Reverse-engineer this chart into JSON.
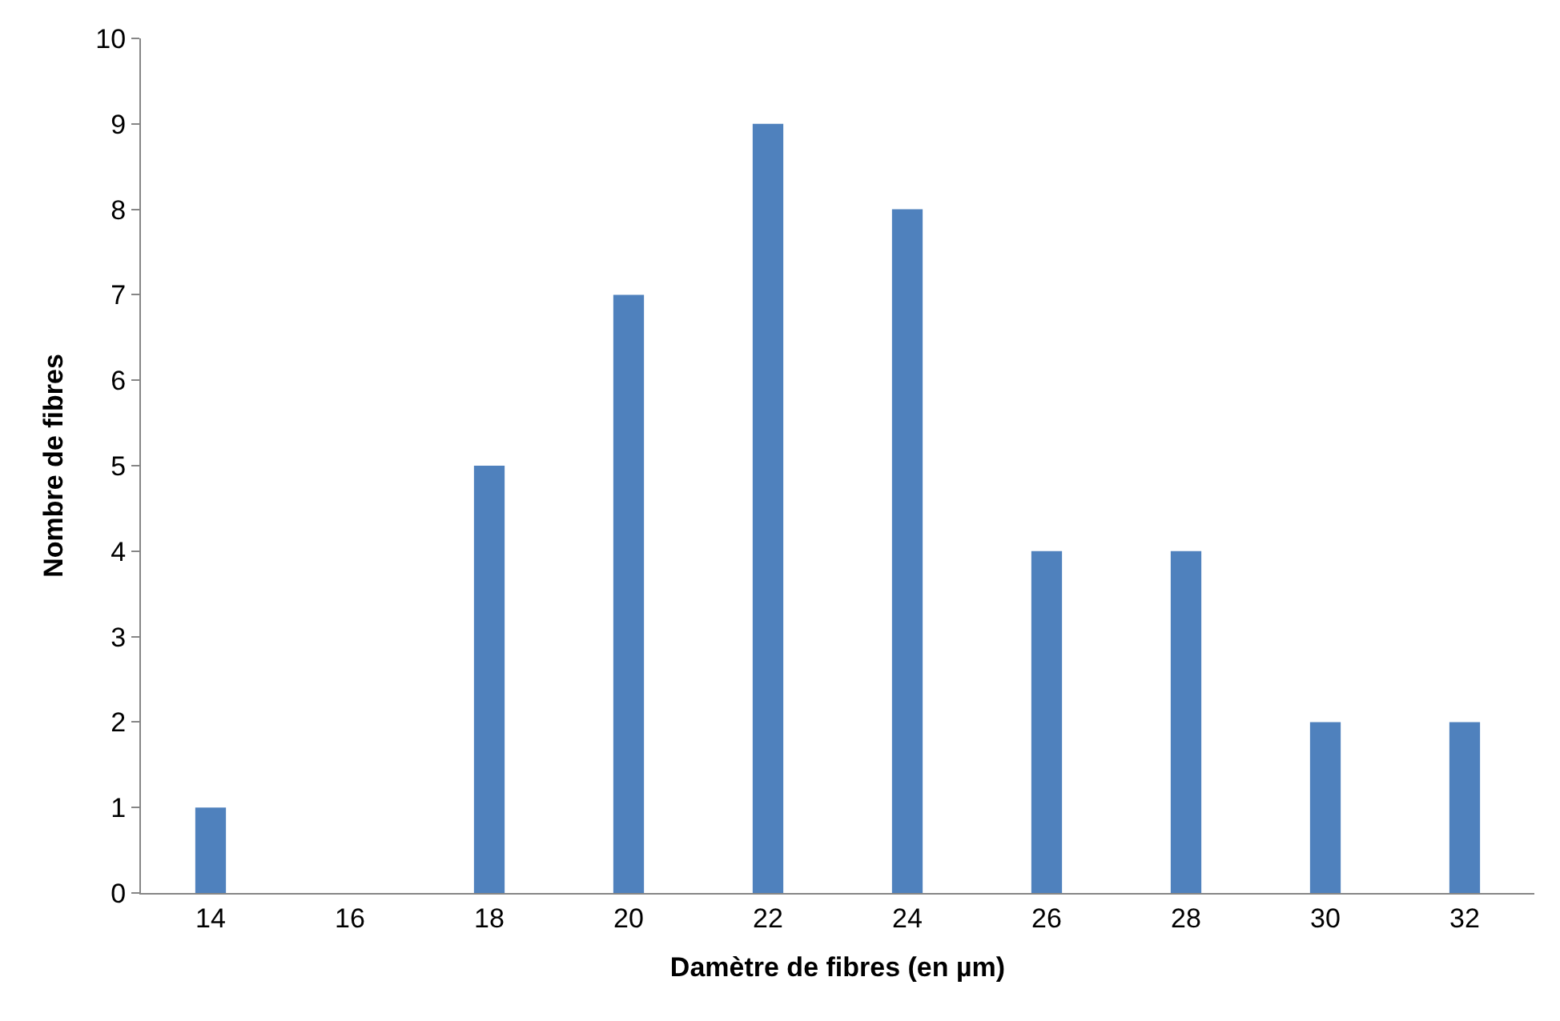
{
  "chart_data": {
    "type": "bar",
    "xlabel": "Damètre de fibres (en µm)",
    "ylabel": "Nombre de fibres",
    "categories": [
      "14",
      "16",
      "18",
      "20",
      "22",
      "24",
      "26",
      "28",
      "30",
      "32"
    ],
    "values": [
      1,
      0,
      5,
      7,
      9,
      8,
      4,
      4,
      2,
      2
    ],
    "color": "#4f81bd",
    "ylim": [
      0,
      10
    ],
    "yticks": [
      0,
      1,
      2,
      3,
      4,
      5,
      6,
      7,
      8,
      9,
      10
    ]
  }
}
